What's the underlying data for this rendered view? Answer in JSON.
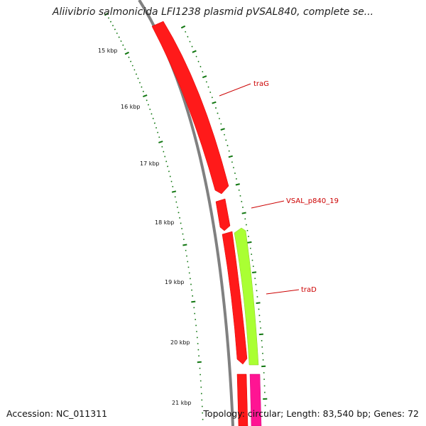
{
  "title": "Aliivibrio salmonicida LFI1238 plasmid pVSAL840, complete se...",
  "footer": {
    "accession": "Accession: NC_011311",
    "summary": "Topology: circular; Length: 83,540 bp; Genes: 72"
  },
  "scale": {
    "labels": [
      "15 kbp",
      "16 kbp",
      "17 kbp",
      "18 kbp",
      "19 kbp",
      "20 kbp",
      "21 kbp"
    ]
  },
  "genes": [
    {
      "name": "traG",
      "color": "#ff0000"
    },
    {
      "name": "VSAL_p840_19",
      "color": "#ff0000"
    },
    {
      "name": "traD",
      "color": "#aaff33"
    }
  ],
  "colors": {
    "forward_gene": "#ff0000",
    "reverse_gene": "#aaff33",
    "other_feature": "#ff1493",
    "backbone": "#808080",
    "ticks": "#117711"
  }
}
